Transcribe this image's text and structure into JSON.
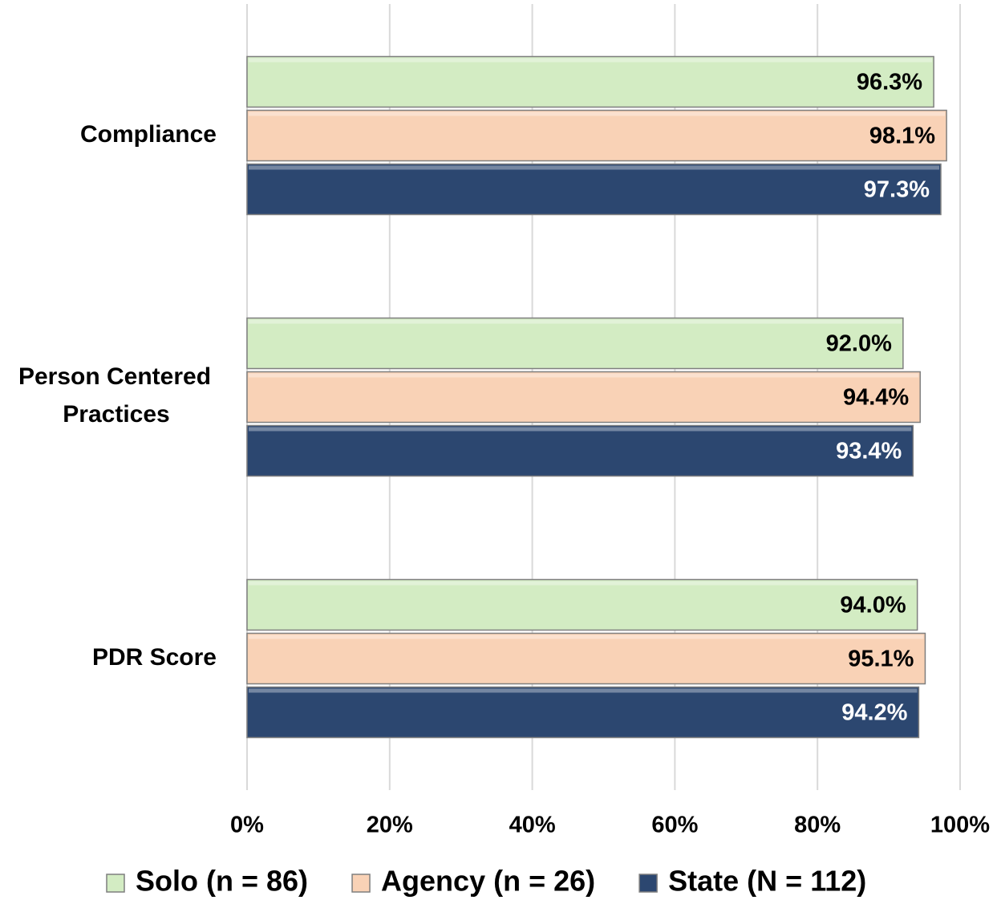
{
  "chart_data": {
    "type": "bar",
    "orientation": "horizontal",
    "categories": [
      "Compliance",
      "Person Centered Practices",
      "PDR Score"
    ],
    "series": [
      {
        "name": "Solo (n = 86)",
        "color": "#d3ecc3",
        "values": [
          96.3,
          92.0,
          94.0
        ],
        "value_labels": [
          "96.3%",
          "92.0%",
          "94.0%"
        ]
      },
      {
        "name": "Agency (n = 26)",
        "color": "#f9d2b6",
        "values": [
          98.1,
          94.4,
          95.1
        ],
        "value_labels": [
          "98.1%",
          "94.4%",
          "95.1%"
        ]
      },
      {
        "name": "State (N = 112)",
        "color": "#2c4770",
        "values": [
          97.3,
          93.4,
          94.2
        ],
        "value_labels": [
          "97.3%",
          "93.4%",
          "94.2%"
        ]
      }
    ],
    "xlim": [
      0,
      100
    ],
    "xticks": [
      {
        "value": 0,
        "label": "0%"
      },
      {
        "value": 20,
        "label": "20%"
      },
      {
        "value": 40,
        "label": "40%"
      },
      {
        "value": 60,
        "label": "60%"
      },
      {
        "value": 80,
        "label": "80%"
      },
      {
        "value": 100,
        "label": "100%"
      }
    ],
    "grid": true,
    "legend": "bottom"
  }
}
